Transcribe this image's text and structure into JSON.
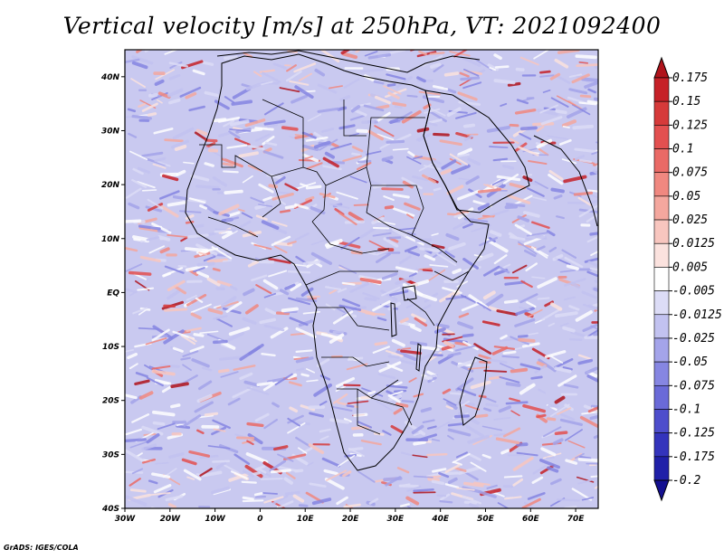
{
  "title": "Vertical velocity [m/s] at 250hPa, VT: 2021092400",
  "credit": "GrADS: IGES/COLA",
  "map": {
    "lon_range": [
      -30,
      75
    ],
    "lat_range": [
      -40,
      45
    ],
    "lat_labels": [
      "40N",
      "30N",
      "20N",
      "10N",
      "EQ",
      "10S",
      "20S",
      "30S",
      "40S"
    ],
    "lat_values": [
      40,
      30,
      20,
      10,
      0,
      -10,
      -20,
      -30,
      -40
    ],
    "lon_labels": [
      "30W",
      "20W",
      "10W",
      "0",
      "10E",
      "20E",
      "30E",
      "40E",
      "50E",
      "60E",
      "70E"
    ],
    "lon_values": [
      -30,
      -20,
      -10,
      0,
      10,
      20,
      30,
      40,
      50,
      60,
      70
    ]
  },
  "colorbar": {
    "labels": [
      "0.175",
      "0.15",
      "0.125",
      "0.1",
      "0.075",
      "0.05",
      "0.025",
      "0.0125",
      "0.005",
      "-0.005",
      "-0.0125",
      "-0.025",
      "-0.05",
      "-0.075",
      "-0.1",
      "-0.125",
      "-0.175",
      "-0.2"
    ],
    "colors": [
      "#b0141c",
      "#c62128",
      "#d63a3a",
      "#e35050",
      "#ea6a66",
      "#f08880",
      "#f4a79e",
      "#f8c6bf",
      "#fbe2de",
      "#ffffff",
      "#dcdcf6",
      "#c2c2f0",
      "#a4a4ea",
      "#8686e2",
      "#6a6ad8",
      "#4e4ecc",
      "#3434bc",
      "#2020a8",
      "#141090"
    ]
  }
}
